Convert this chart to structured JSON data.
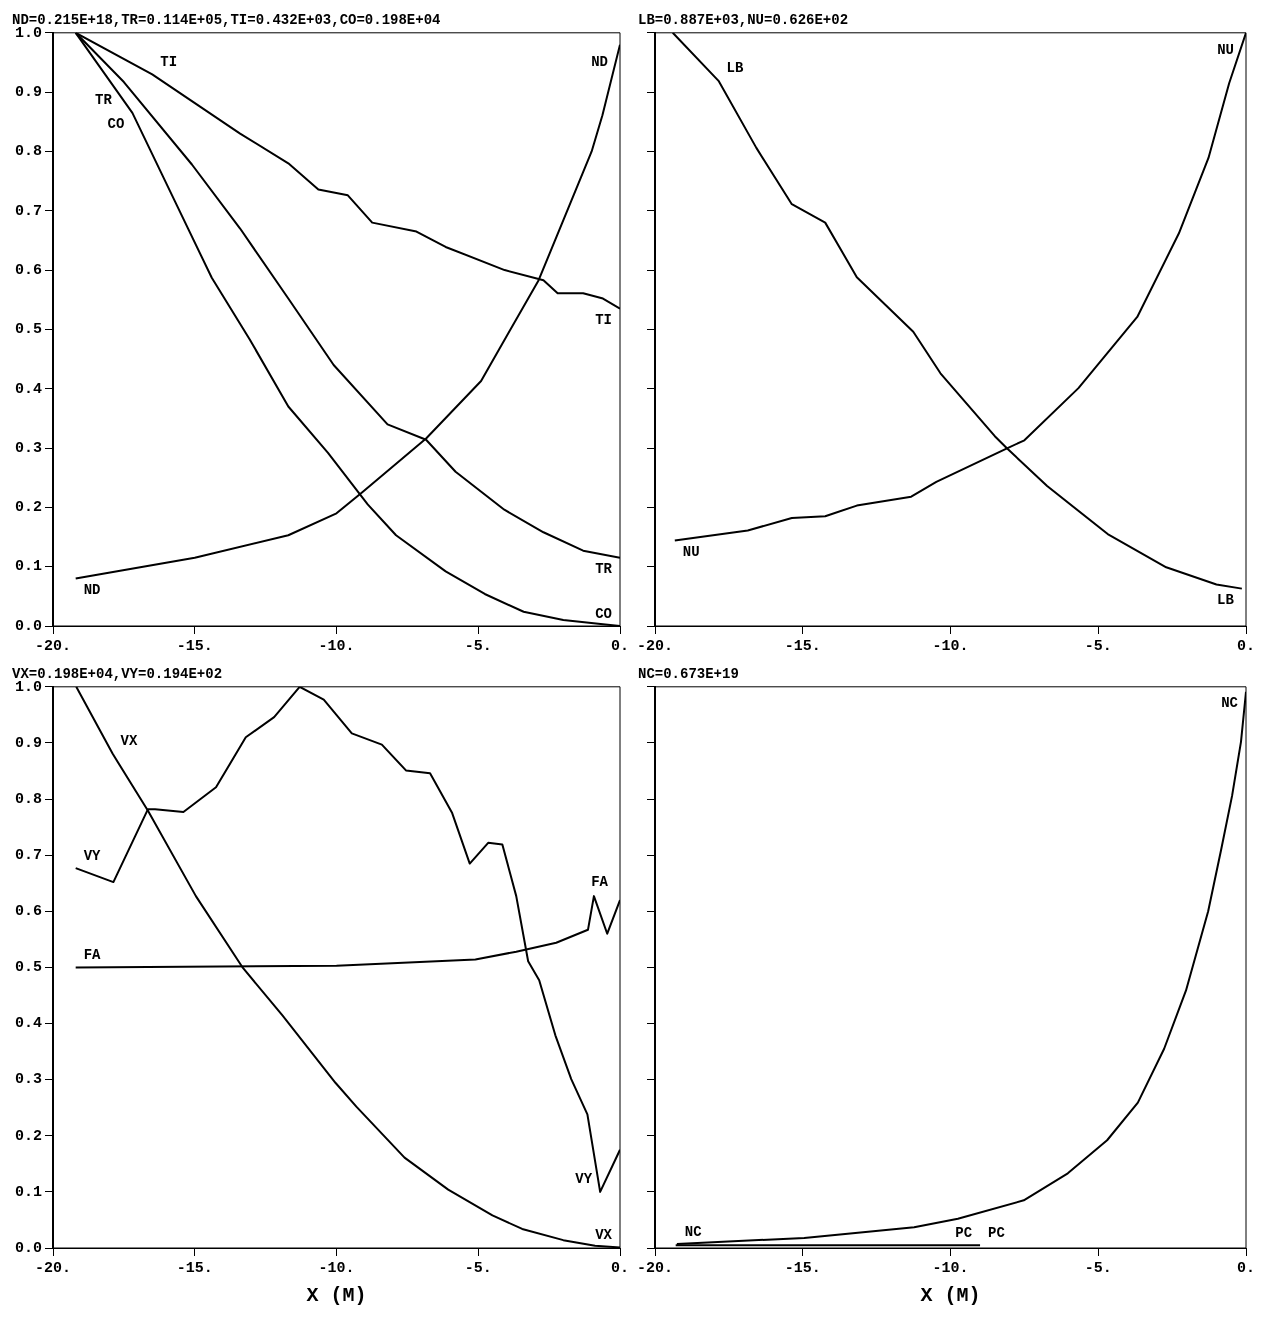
{
  "chart_data": [
    {
      "type": "line",
      "title": "ND=0.215E+18,TR=0.114E+05,TI=0.432E+03,CO=0.198E+04",
      "xlim": [
        -20,
        0
      ],
      "ylim": [
        0,
        1
      ],
      "xticks": [
        {
          "value": -20,
          "label": "-20."
        },
        {
          "value": -15,
          "label": "-15."
        },
        {
          "value": -10,
          "label": "-10."
        },
        {
          "value": -5,
          "label": "-5."
        },
        {
          "value": 0,
          "label": "0."
        }
      ],
      "yticks": [
        {
          "value": 0,
          "label": "0.0"
        },
        {
          "value": 0.1,
          "label": "0.1"
        },
        {
          "value": 0.2,
          "label": "0.2"
        },
        {
          "value": 0.3,
          "label": "0.3"
        },
        {
          "value": 0.4,
          "label": "0.4"
        },
        {
          "value": 0.5,
          "label": "0.5"
        },
        {
          "value": 0.6,
          "label": "0.6"
        },
        {
          "value": 0.7,
          "label": "0.7"
        },
        {
          "value": 0.8,
          "label": "0.8"
        },
        {
          "value": 0.9,
          "label": "0.9"
        },
        {
          "value": 1,
          "label": "1.0"
        }
      ],
      "grid": false,
      "legend": false,
      "marker": "none",
      "line_style": "solid",
      "series": [
        {
          "name": "ND",
          "color": "#000000",
          "x": [
            -19.2,
            -15,
            -11.7,
            -10,
            -9.08,
            -6.84,
            -4.9,
            -2.87,
            -1,
            -0.62,
            0
          ],
          "values": [
            0.08,
            0.115,
            0.153,
            0.19,
            0.226,
            0.316,
            0.413,
            0.583,
            0.8,
            0.861,
            0.98
          ]
        },
        {
          "name": "TR",
          "color": "#000000",
          "x": [
            -19.2,
            -17.5,
            -15.1,
            -13.4,
            -11.7,
            -10.1,
            -8.2,
            -6.84,
            -5.8,
            -4.08,
            -2.7,
            -1.3,
            0
          ],
          "values": [
            1.0,
            0.917,
            0.778,
            0.67,
            0.552,
            0.44,
            0.34,
            0.314,
            0.26,
            0.196,
            0.158,
            0.127,
            0.115
          ]
        },
        {
          "name": "TI",
          "color": "#000000",
          "x": [
            -19.2,
            -16.5,
            -13.4,
            -11.7,
            -10.64,
            -9.6,
            -8.74,
            -7.18,
            -6.15,
            -4.07,
            -2.7,
            -2.2,
            -1.3,
            -0.6,
            0
          ],
          "values": [
            1.0,
            0.93,
            0.83,
            0.78,
            0.736,
            0.726,
            0.68,
            0.665,
            0.639,
            0.6,
            0.583,
            0.561,
            0.561,
            0.552,
            0.535
          ]
        },
        {
          "name": "CO",
          "color": "#000000",
          "x": [
            -19.2,
            -17.2,
            -15.8,
            -14.4,
            -13.06,
            -11.7,
            -10.3,
            -8.9,
            -7.9,
            -6.15,
            -4.77,
            -3.4,
            -2.0,
            -0.6,
            0
          ],
          "values": [
            1.0,
            0.865,
            0.726,
            0.587,
            0.483,
            0.37,
            0.292,
            0.205,
            0.153,
            0.092,
            0.054,
            0.024,
            0.01,
            0.003,
            0
          ]
        }
      ]
    },
    {
      "type": "line",
      "title": "LB=0.887E+03,NU=0.626E+02",
      "xlim": [
        -20,
        0
      ],
      "ylim": [
        0,
        1
      ],
      "xticks": [
        {
          "value": -20,
          "label": "-20."
        },
        {
          "value": -15,
          "label": "-15."
        },
        {
          "value": -10,
          "label": "-10."
        },
        {
          "value": -5,
          "label": "-5."
        },
        {
          "value": 0,
          "label": "0."
        }
      ],
      "yticks": [
        0,
        0.1,
        0.2,
        0.3,
        0.4,
        0.5,
        0.6,
        0.7,
        0.8,
        0.9,
        1
      ],
      "tick_labels": "x",
      "grid": false,
      "legend": false,
      "marker": "none",
      "line_style": "solid",
      "series": [
        {
          "name": "LB",
          "color": "#000000",
          "x": [
            -19.4,
            -17.85,
            -16.57,
            -15.37,
            -14.24,
            -13.17,
            -11.26,
            -10.34,
            -8.5,
            -8.1,
            -6.73,
            -4.68,
            -2.7,
            -1.0,
            -0.14
          ],
          "values": [
            1.0,
            0.919,
            0.806,
            0.711,
            0.68,
            0.588,
            0.496,
            0.426,
            0.32,
            0.3,
            0.236,
            0.155,
            0.099,
            0.07,
            0.063
          ]
        },
        {
          "name": "NU",
          "color": "#000000",
          "x": [
            -19.33,
            -16.86,
            -15.37,
            -14.24,
            -13.17,
            -11.33,
            -10.48,
            -8.07,
            -7.5,
            -5.67,
            -3.68,
            -2.27,
            -1.27,
            -0.57,
            0
          ],
          "values": [
            0.144,
            0.161,
            0.182,
            0.185,
            0.203,
            0.218,
            0.243,
            0.3,
            0.313,
            0.401,
            0.521,
            0.662,
            0.789,
            0.915,
            1.0
          ]
        }
      ]
    },
    {
      "type": "line",
      "title": "VX=0.198E+04,VY=0.194E+02",
      "xlabel": "X (M)",
      "xlim": [
        -20,
        0
      ],
      "ylim": [
        0,
        1
      ],
      "xticks": [
        {
          "value": -20,
          "label": "-20."
        },
        {
          "value": -15,
          "label": "-15."
        },
        {
          "value": -10,
          "label": "-10."
        },
        {
          "value": -5,
          "label": "-5."
        },
        {
          "value": 0,
          "label": "0."
        }
      ],
      "yticks": [
        {
          "value": 0,
          "label": "0.0"
        },
        {
          "value": 0.1,
          "label": "0.1"
        },
        {
          "value": 0.2,
          "label": "0.2"
        },
        {
          "value": 0.3,
          "label": "0.3"
        },
        {
          "value": 0.4,
          "label": "0.4"
        },
        {
          "value": 0.5,
          "label": "0.5"
        },
        {
          "value": 0.6,
          "label": "0.6"
        },
        {
          "value": 0.7,
          "label": "0.7"
        },
        {
          "value": 0.8,
          "label": "0.8"
        },
        {
          "value": 0.9,
          "label": "0.9"
        },
        {
          "value": 1,
          "label": "1.0"
        }
      ],
      "grid": false,
      "legend": false,
      "marker": "none",
      "line_style": "solid",
      "series": [
        {
          "name": "VX",
          "color": "#000000",
          "x": [
            -19.18,
            -17.9,
            -16.65,
            -14.96,
            -13.3,
            -11.9,
            -10.03,
            -9.3,
            -7.6,
            -6.06,
            -4.5,
            -3.45,
            -2.0,
            -0.88,
            0
          ],
          "values": [
            1.0,
            0.881,
            0.779,
            0.627,
            0.499,
            0.414,
            0.294,
            0.252,
            0.161,
            0.104,
            0.058,
            0.034,
            0.014,
            0.004,
            0.001
          ]
        },
        {
          "name": "VY",
          "color": "#000000",
          "x": [
            -19.2,
            -17.87,
            -16.65,
            -16.4,
            -15.4,
            -14.25,
            -13.2,
            -12.2,
            -11.3,
            -10.45,
            -9.46,
            -8.4,
            -7.55,
            -6.7,
            -5.92,
            -5.3,
            -4.65,
            -4.15,
            -3.66,
            -3.24,
            -2.85,
            -2.28,
            -1.72,
            -1.15,
            -0.7,
            0
          ],
          "values": [
            0.677,
            0.652,
            0.782,
            0.782,
            0.777,
            0.821,
            0.91,
            0.946,
            1.0,
            0.977,
            0.917,
            0.897,
            0.851,
            0.846,
            0.775,
            0.685,
            0.722,
            0.719,
            0.627,
            0.511,
            0.477,
            0.379,
            0.301,
            0.238,
            0.1,
            0.175
          ]
        },
        {
          "name": "FA",
          "color": "#000000",
          "x": [
            -19.2,
            -10.0,
            -5.1,
            -3.66,
            -2.25,
            -1.13,
            -0.92,
            -0.45,
            0
          ],
          "values": [
            0.5,
            0.503,
            0.514,
            0.528,
            0.544,
            0.567,
            0.627,
            0.56,
            0.62
          ]
        }
      ]
    },
    {
      "type": "line",
      "title": "NC=0.673E+19",
      "xlabel": "X (M)",
      "xlim": [
        -20,
        0
      ],
      "ylim": [
        0,
        1
      ],
      "xticks": [
        {
          "value": -20,
          "label": "-20."
        },
        {
          "value": -15,
          "label": "-15."
        },
        {
          "value": -10,
          "label": "-10."
        },
        {
          "value": -5,
          "label": "-5."
        },
        {
          "value": 0,
          "label": "0."
        }
      ],
      "yticks": [
        0,
        0.1,
        0.2,
        0.3,
        0.4,
        0.5,
        0.6,
        0.7,
        0.8,
        0.9,
        1
      ],
      "tick_labels": "x",
      "grid": false,
      "legend": false,
      "marker": "none",
      "line_style": "solid",
      "series": [
        {
          "name": "NC",
          "color": "#000000",
          "x": [
            -19.26,
            -14.95,
            -11.23,
            -9.75,
            -7.52,
            -6.03,
            -4.7,
            -3.66,
            -2.77,
            -2.03,
            -1.28,
            -0.84,
            -0.47,
            -0.17,
            0
          ],
          "values": [
            0.007,
            0.018,
            0.037,
            0.052,
            0.085,
            0.133,
            0.192,
            0.259,
            0.355,
            0.459,
            0.6,
            0.71,
            0.806,
            0.902,
            0.991
          ]
        },
        {
          "name": "PC",
          "color": "#000000",
          "x": [
            -19.3,
            -14,
            -9
          ],
          "values": [
            0.005,
            0.005,
            0.005
          ]
        }
      ]
    }
  ]
}
